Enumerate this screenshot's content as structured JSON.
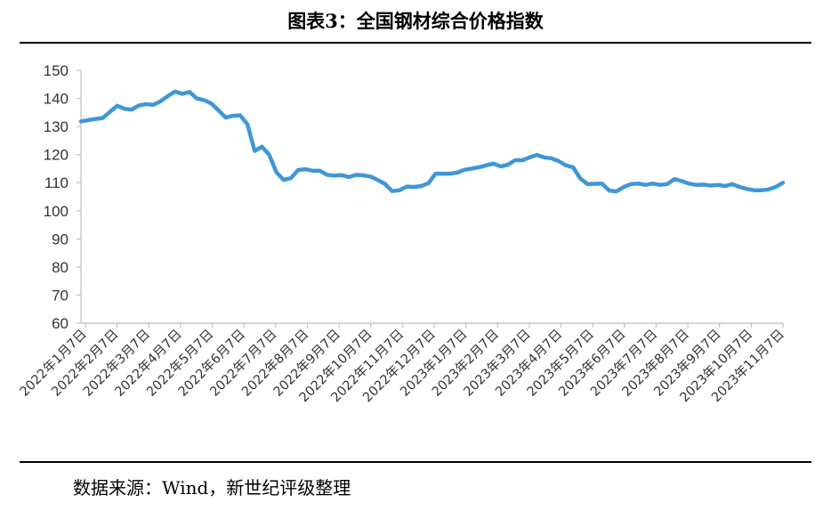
{
  "figure_title": "图表3：全国钢材综合价格指数",
  "source_note": "数据来源：Wind，新世纪评级整理",
  "colors": {
    "series": "#3f97d8",
    "axis": "#bfbfbf",
    "text": "#333333"
  },
  "chart_data": {
    "type": "line",
    "title": "",
    "xlabel": "",
    "ylabel": "",
    "ylim": [
      60,
      150
    ],
    "yticks": [
      60,
      70,
      80,
      90,
      100,
      110,
      120,
      130,
      140,
      150
    ],
    "grid": false,
    "legend": "none",
    "x_ticks": [
      "2022年1月7日",
      "2022年2月7日",
      "2022年3月7日",
      "2022年4月7日",
      "2022年5月7日",
      "2022年6月7日",
      "2022年7月7日",
      "2022年8月7日",
      "2022年9月7日",
      "2022年10月7日",
      "2022年11月7日",
      "2022年12月7日",
      "2023年1月7日",
      "2023年2月7日",
      "2023年3月7日",
      "2023年4月7日",
      "2023年5月7日",
      "2023年6月7日",
      "2023年7月7日",
      "2023年8月7日",
      "2023年9月7日",
      "2023年10月7日",
      "2023年11月7日"
    ],
    "series": [
      {
        "name": "",
        "values": [
          131.8,
          132.3,
          132.7,
          133.0,
          135.2,
          137.4,
          136.3,
          136.0,
          137.5,
          138.0,
          137.7,
          139.0,
          140.8,
          142.5,
          141.6,
          142.3,
          140.0,
          139.4,
          138.2,
          135.8,
          133.2,
          133.8,
          134.0,
          130.8,
          121.3,
          122.8,
          120.0,
          113.7,
          111.0,
          111.6,
          114.5,
          114.8,
          114.3,
          114.3,
          112.8,
          112.5,
          112.7,
          112.0,
          112.8,
          112.6,
          112.2,
          111.0,
          109.6,
          107.0,
          107.3,
          108.6,
          108.5,
          108.8,
          109.8,
          113.2,
          113.2,
          113.2,
          113.6,
          114.6,
          115.0,
          115.5,
          116.2,
          116.8,
          115.8,
          116.4,
          118.0,
          118.0,
          119.0,
          119.9,
          119.0,
          118.7,
          117.7,
          116.2,
          115.5,
          111.5,
          109.5,
          109.6,
          109.7,
          107.2,
          106.9,
          108.5,
          109.5,
          109.7,
          109.2,
          109.7,
          109.2,
          109.5,
          111.3,
          110.6,
          109.7,
          109.2,
          109.3,
          109.0,
          109.2,
          108.8,
          109.5,
          108.5,
          107.8,
          107.3,
          107.3,
          107.6,
          108.5,
          110.0
        ]
      }
    ]
  }
}
